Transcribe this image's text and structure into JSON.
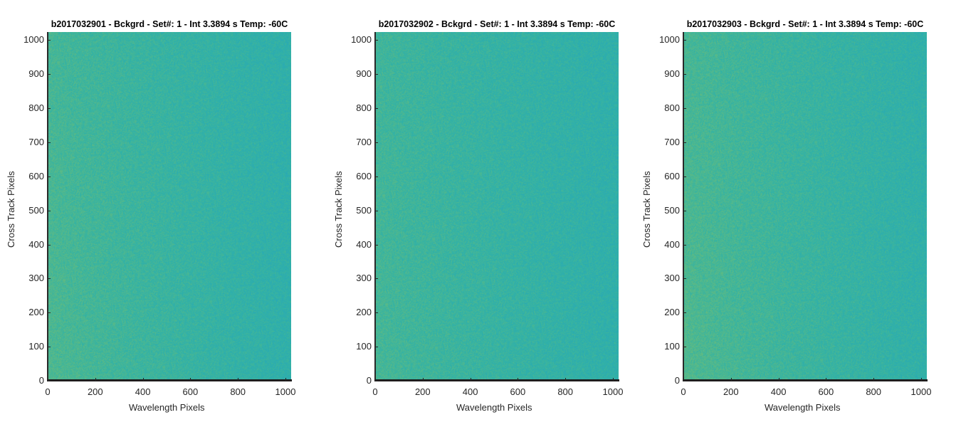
{
  "chart_data": [
    {
      "type": "heatmap",
      "title": "b2017032901 - Bckgrd - Set#: 1 - Int 3.3894 s Temp: -60C",
      "xlabel": "Wavelength Pixels",
      "ylabel": "Cross Track Pixels",
      "xlim": [
        0,
        1024
      ],
      "ylim": [
        0,
        1024
      ],
      "xticks": [
        "0",
        "200",
        "400",
        "600",
        "800",
        "1000"
      ],
      "yticks": [
        "0",
        "100",
        "200",
        "300",
        "400",
        "500",
        "600",
        "700",
        "800",
        "900",
        "1000"
      ],
      "colormap": "parula",
      "colors": {
        "high": "#7fc06a",
        "mid": "#34b3a4",
        "low": "#1d9fc8"
      },
      "gradient": {
        "left_level": 0.62,
        "right_level": 0.42,
        "bottom_boost": 0.06
      }
    },
    {
      "type": "heatmap",
      "title": "b2017032902 - Bckgrd - Set#: 1 - Int 3.3894 s Temp: -60C",
      "xlabel": "Wavelength Pixels",
      "ylabel": "Cross Track Pixels",
      "xlim": [
        0,
        1024
      ],
      "ylim": [
        0,
        1024
      ],
      "xticks": [
        "0",
        "200",
        "400",
        "600",
        "800",
        "1000"
      ],
      "yticks": [
        "0",
        "100",
        "200",
        "300",
        "400",
        "500",
        "600",
        "700",
        "800",
        "900",
        "1000"
      ],
      "colormap": "parula",
      "colors": {
        "high": "#7fc06a",
        "mid": "#34b3a4",
        "low": "#1d9fc8"
      },
      "gradient": {
        "left_level": 0.58,
        "right_level": 0.42,
        "bottom_boost": 0.05
      }
    },
    {
      "type": "heatmap",
      "title": "b2017032903 - Bckgrd - Set#: 1 - Int 3.3894 s Temp: -60C",
      "xlabel": "Wavelength Pixels",
      "ylabel": "Cross Track Pixels",
      "xlim": [
        0,
        1024
      ],
      "ylim": [
        0,
        1024
      ],
      "xticks": [
        "0",
        "200",
        "400",
        "600",
        "800",
        "1000"
      ],
      "yticks": [
        "0",
        "100",
        "200",
        "300",
        "400",
        "500",
        "600",
        "700",
        "800",
        "900",
        "1000"
      ],
      "colormap": "parula",
      "colors": {
        "high": "#7fc06a",
        "mid": "#34b3a4",
        "low": "#1d9fc8"
      },
      "gradient": {
        "left_level": 0.64,
        "right_level": 0.43,
        "bottom_boost": 0.06
      }
    }
  ]
}
